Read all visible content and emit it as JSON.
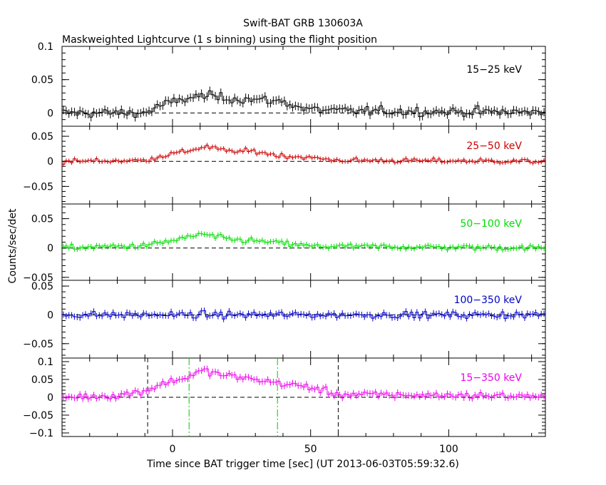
{
  "header": {
    "title": "Swift-BAT GRB 130603A",
    "subtitle": "Maskweighted Lightcurve (1 s binning) using the flight position"
  },
  "chart_data": {
    "type": "line",
    "xlabel": "Time since BAT trigger time [sec] (UT 2013-06-03T05:59:32.6)",
    "ylabel": "Counts/sec/det",
    "xlim": [
      -40,
      135
    ],
    "x_ticks": [
      0,
      50,
      100
    ],
    "panels": [
      {
        "band": "15−25 keV",
        "color": "#000000",
        "ylim": [
          -0.02,
          0.1
        ],
        "y_ticks": [
          0,
          0.05,
          0.1
        ],
        "y_tick_labels": [
          "0",
          "0.05",
          "0.1"
        ],
        "baseline": 0.0,
        "curve": [
          [
            -40,
            0.0
          ],
          [
            -10,
            0.0
          ],
          [
            -5,
            0.01
          ],
          [
            5,
            0.022
          ],
          [
            12,
            0.026
          ],
          [
            20,
            0.022
          ],
          [
            30,
            0.02
          ],
          [
            40,
            0.017
          ],
          [
            48,
            0.006
          ],
          [
            60,
            0.003
          ],
          [
            135,
            0.001
          ]
        ],
        "noise": 0.007
      },
      {
        "band": "25−50 keV",
        "color": "#cc0000",
        "ylim": [
          -0.085,
          0.07
        ],
        "y_ticks": [
          -0.05,
          0,
          0.05
        ],
        "y_tick_labels": [
          "−0.05",
          "0",
          "0.05"
        ],
        "baseline": 0.0,
        "curve": [
          [
            -40,
            0.0
          ],
          [
            -10,
            0.002
          ],
          [
            -3,
            0.012
          ],
          [
            5,
            0.02
          ],
          [
            12,
            0.03
          ],
          [
            20,
            0.02
          ],
          [
            30,
            0.02
          ],
          [
            38,
            0.012
          ],
          [
            48,
            0.008
          ],
          [
            60,
            0.002
          ],
          [
            135,
            0.0
          ]
        ],
        "noise": 0.005
      },
      {
        "band": "50−100 keV",
        "color": "#00dd00",
        "ylim": [
          -0.055,
          0.075
        ],
        "y_ticks": [
          -0.05,
          0,
          0.05
        ],
        "y_tick_labels": [
          "−0.05",
          "0",
          "0.05"
        ],
        "baseline": 0.0,
        "curve": [
          [
            -40,
            0.0
          ],
          [
            -10,
            0.004
          ],
          [
            -3,
            0.01
          ],
          [
            5,
            0.017
          ],
          [
            10,
            0.024
          ],
          [
            20,
            0.015
          ],
          [
            30,
            0.012
          ],
          [
            40,
            0.008
          ],
          [
            50,
            0.003
          ],
          [
            135,
            0.0
          ]
        ],
        "noise": 0.005
      },
      {
        "band": "100−350 keV",
        "color": "#0000cc",
        "ylim": [
          -0.075,
          0.06
        ],
        "y_ticks": [
          -0.05,
          0,
          0.05
        ],
        "y_tick_labels": [
          "−0.05",
          "0",
          "0.05"
        ],
        "baseline": 0.0,
        "curve": [
          [
            -40,
            0.0
          ],
          [
            135,
            0.0
          ]
        ],
        "noise": 0.006
      },
      {
        "band": "15−350 keV",
        "color": "#ee00ee",
        "ylim": [
          -0.11,
          0.11
        ],
        "y_ticks": [
          -0.1,
          -0.05,
          0,
          0.05,
          0.1
        ],
        "y_tick_labels": [
          "−0.1",
          "−0.05",
          "0",
          "0.05",
          "0.1"
        ],
        "baseline": 0.0,
        "curve": [
          [
            -40,
            0.0
          ],
          [
            -20,
            0.005
          ],
          [
            -10,
            0.018
          ],
          [
            -3,
            0.04
          ],
          [
            5,
            0.055
          ],
          [
            11,
            0.075
          ],
          [
            20,
            0.06
          ],
          [
            30,
            0.05
          ],
          [
            40,
            0.038
          ],
          [
            50,
            0.028
          ],
          [
            60,
            0.008
          ],
          [
            135,
            0.003
          ]
        ],
        "noise": 0.01,
        "markers": [
          {
            "x": -9,
            "color": "#000000",
            "style": "dashed"
          },
          {
            "x": 6,
            "color": "#00cc00",
            "style": "dashdot"
          },
          {
            "x": 38,
            "color": "#00cc00",
            "style": "dashdot"
          },
          {
            "x": 60,
            "color": "#000000",
            "style": "dashed"
          }
        ]
      }
    ]
  }
}
